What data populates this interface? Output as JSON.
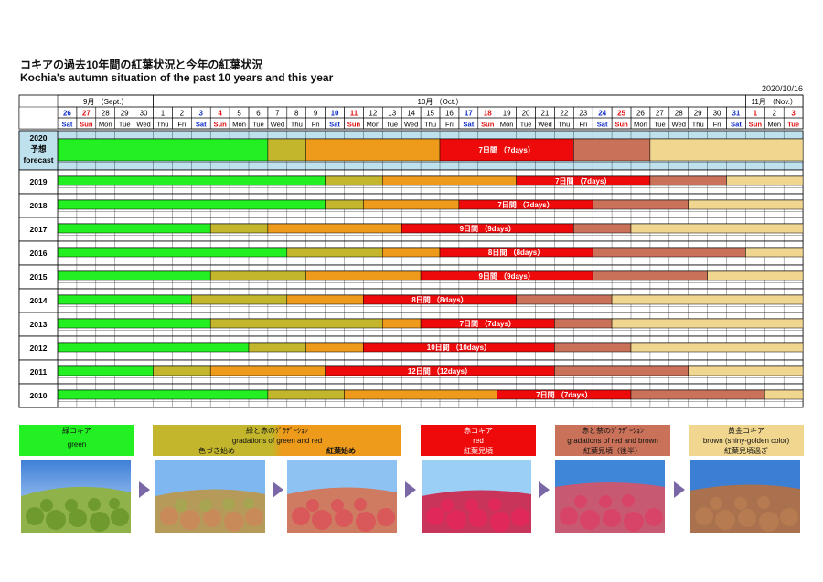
{
  "header": {
    "title_jp": "コキアの過去10年間の紅葉状況と今年の紅葉状況",
    "title_en": "Kochia's autumn situation of the past 10 years and this year",
    "date": "2020/10/16"
  },
  "colors": {
    "green": "#22f022",
    "olive": "#c3b62c",
    "orange": "#ee9b1b",
    "red": "#ee0a0a",
    "brown": "#c97259",
    "beige": "#f1d68f",
    "blue_text": "#1130c8",
    "red_text": "#e01010",
    "forecast_bg": "#bfe1ee"
  },
  "chart_data": {
    "type": "table",
    "months": [
      {
        "label": "9月 （Sept.）",
        "start": 0,
        "span": 5
      },
      {
        "label": "10月 （Oct.）",
        "start": 5,
        "span": 31
      },
      {
        "label": "11月 （Nov.）",
        "start": 36,
        "span": 3
      }
    ],
    "days": [
      "26",
      "27",
      "28",
      "29",
      "30",
      "1",
      "2",
      "3",
      "4",
      "5",
      "6",
      "7",
      "8",
      "9",
      "10",
      "11",
      "12",
      "13",
      "14",
      "15",
      "16",
      "17",
      "18",
      "19",
      "20",
      "21",
      "22",
      "23",
      "24",
      "25",
      "26",
      "27",
      "28",
      "29",
      "30",
      "31",
      "1",
      "2",
      "3"
    ],
    "weekdays": [
      "Sat",
      "Sun",
      "Mon",
      "Tue",
      "Wed",
      "Thu",
      "Fri",
      "Sat",
      "Sun",
      "Mon",
      "Tue",
      "Wed",
      "Thu",
      "Fri",
      "Sat",
      "Sun",
      "Mon",
      "Tue",
      "Wed",
      "Thu",
      "Fri",
      "Sat",
      "Sun",
      "Mon",
      "Tue",
      "Wed",
      "Thu",
      "Fri",
      "Sat",
      "Sun",
      "Mon",
      "Tue",
      "Wed",
      "Thu",
      "Fri",
      "Sat",
      "Sun",
      "Mon",
      "Tue"
    ],
    "day_colors": [
      "blue",
      "red",
      "",
      "",
      "",
      "",
      "",
      "blue",
      "red",
      "",
      "",
      "",
      "",
      "",
      "blue",
      "red",
      "",
      "",
      "",
      "",
      "",
      "blue",
      "red",
      "",
      "",
      "",
      "",
      "",
      "blue",
      "red",
      "",
      "",
      "",
      "",
      "",
      "blue",
      "red",
      "",
      "red"
    ],
    "stage_order": [
      "green",
      "olive",
      "orange",
      "red",
      "brown",
      "beige"
    ],
    "rows": [
      {
        "label": "2020",
        "label2": "予想",
        "label3": "forecast",
        "forecast": true,
        "bounds": [
          0,
          11,
          13,
          20,
          27,
          31,
          39
        ],
        "red_label": "7日間 （7days）"
      },
      {
        "label": "2019",
        "bounds": [
          0,
          14,
          17,
          24,
          31,
          35,
          39
        ],
        "red_label": "7日間 （7days）"
      },
      {
        "label": "2018",
        "bounds": [
          0,
          14,
          16,
          21,
          28,
          33,
          39
        ],
        "red_label": "7日間 （7days）"
      },
      {
        "label": "2017",
        "bounds": [
          0,
          8,
          11,
          18,
          27,
          30,
          39
        ],
        "red_label": "9日間 （9days）"
      },
      {
        "label": "2016",
        "bounds": [
          0,
          12,
          17,
          20,
          28,
          36,
          39
        ],
        "red_label": "8日間 （8days）"
      },
      {
        "label": "2015",
        "bounds": [
          0,
          8,
          13,
          19,
          28,
          34,
          39
        ],
        "red_label": "9日間 （9days）"
      },
      {
        "label": "2014",
        "bounds": [
          0,
          7,
          12,
          16,
          24,
          29,
          39
        ],
        "red_label": "8日間 （8days）"
      },
      {
        "label": "2013",
        "bounds": [
          0,
          8,
          17,
          19,
          26,
          29,
          39
        ],
        "red_label": "7日間 （7days）"
      },
      {
        "label": "2012",
        "bounds": [
          0,
          10,
          13,
          16,
          26,
          30,
          39
        ],
        "red_label": "10日間 （10days）"
      },
      {
        "label": "2011",
        "bounds": [
          0,
          5,
          8,
          14,
          26,
          33,
          39
        ],
        "red_label": "12日間 （12days）"
      },
      {
        "label": "2010",
        "bounds": [
          0,
          11,
          15,
          23,
          30,
          37,
          39
        ],
        "red_label": "7日間 （7days）"
      }
    ]
  },
  "legend": [
    {
      "line1": "緑コキア",
      "line2": "green",
      "line3": "",
      "color": "#22f022"
    },
    {
      "line1": "緑と赤のｸﾞﾗﾃﾞｰｼｮﾝ",
      "line2": "gradations of green and red",
      "line3a": "色づき始め",
      "line3b": "紅葉始め",
      "color": "#c3b62c",
      "color2": "#ee9b1b"
    },
    {
      "line1": "赤コキア",
      "line2": "red",
      "line3": "紅葉見頃",
      "color": "#ee0a0a"
    },
    {
      "line1": "赤と茶のｸﾞﾗﾃﾞｰｼｮﾝ",
      "line2": "gradations of red and brown",
      "line3": "紅葉見頃（後半）",
      "color": "#c97259"
    },
    {
      "line1": "黄金コキア",
      "line2": "brown (shiny-golden color)",
      "line3": "紅葉見頃過ぎ",
      "color": "#f1d68f"
    }
  ]
}
